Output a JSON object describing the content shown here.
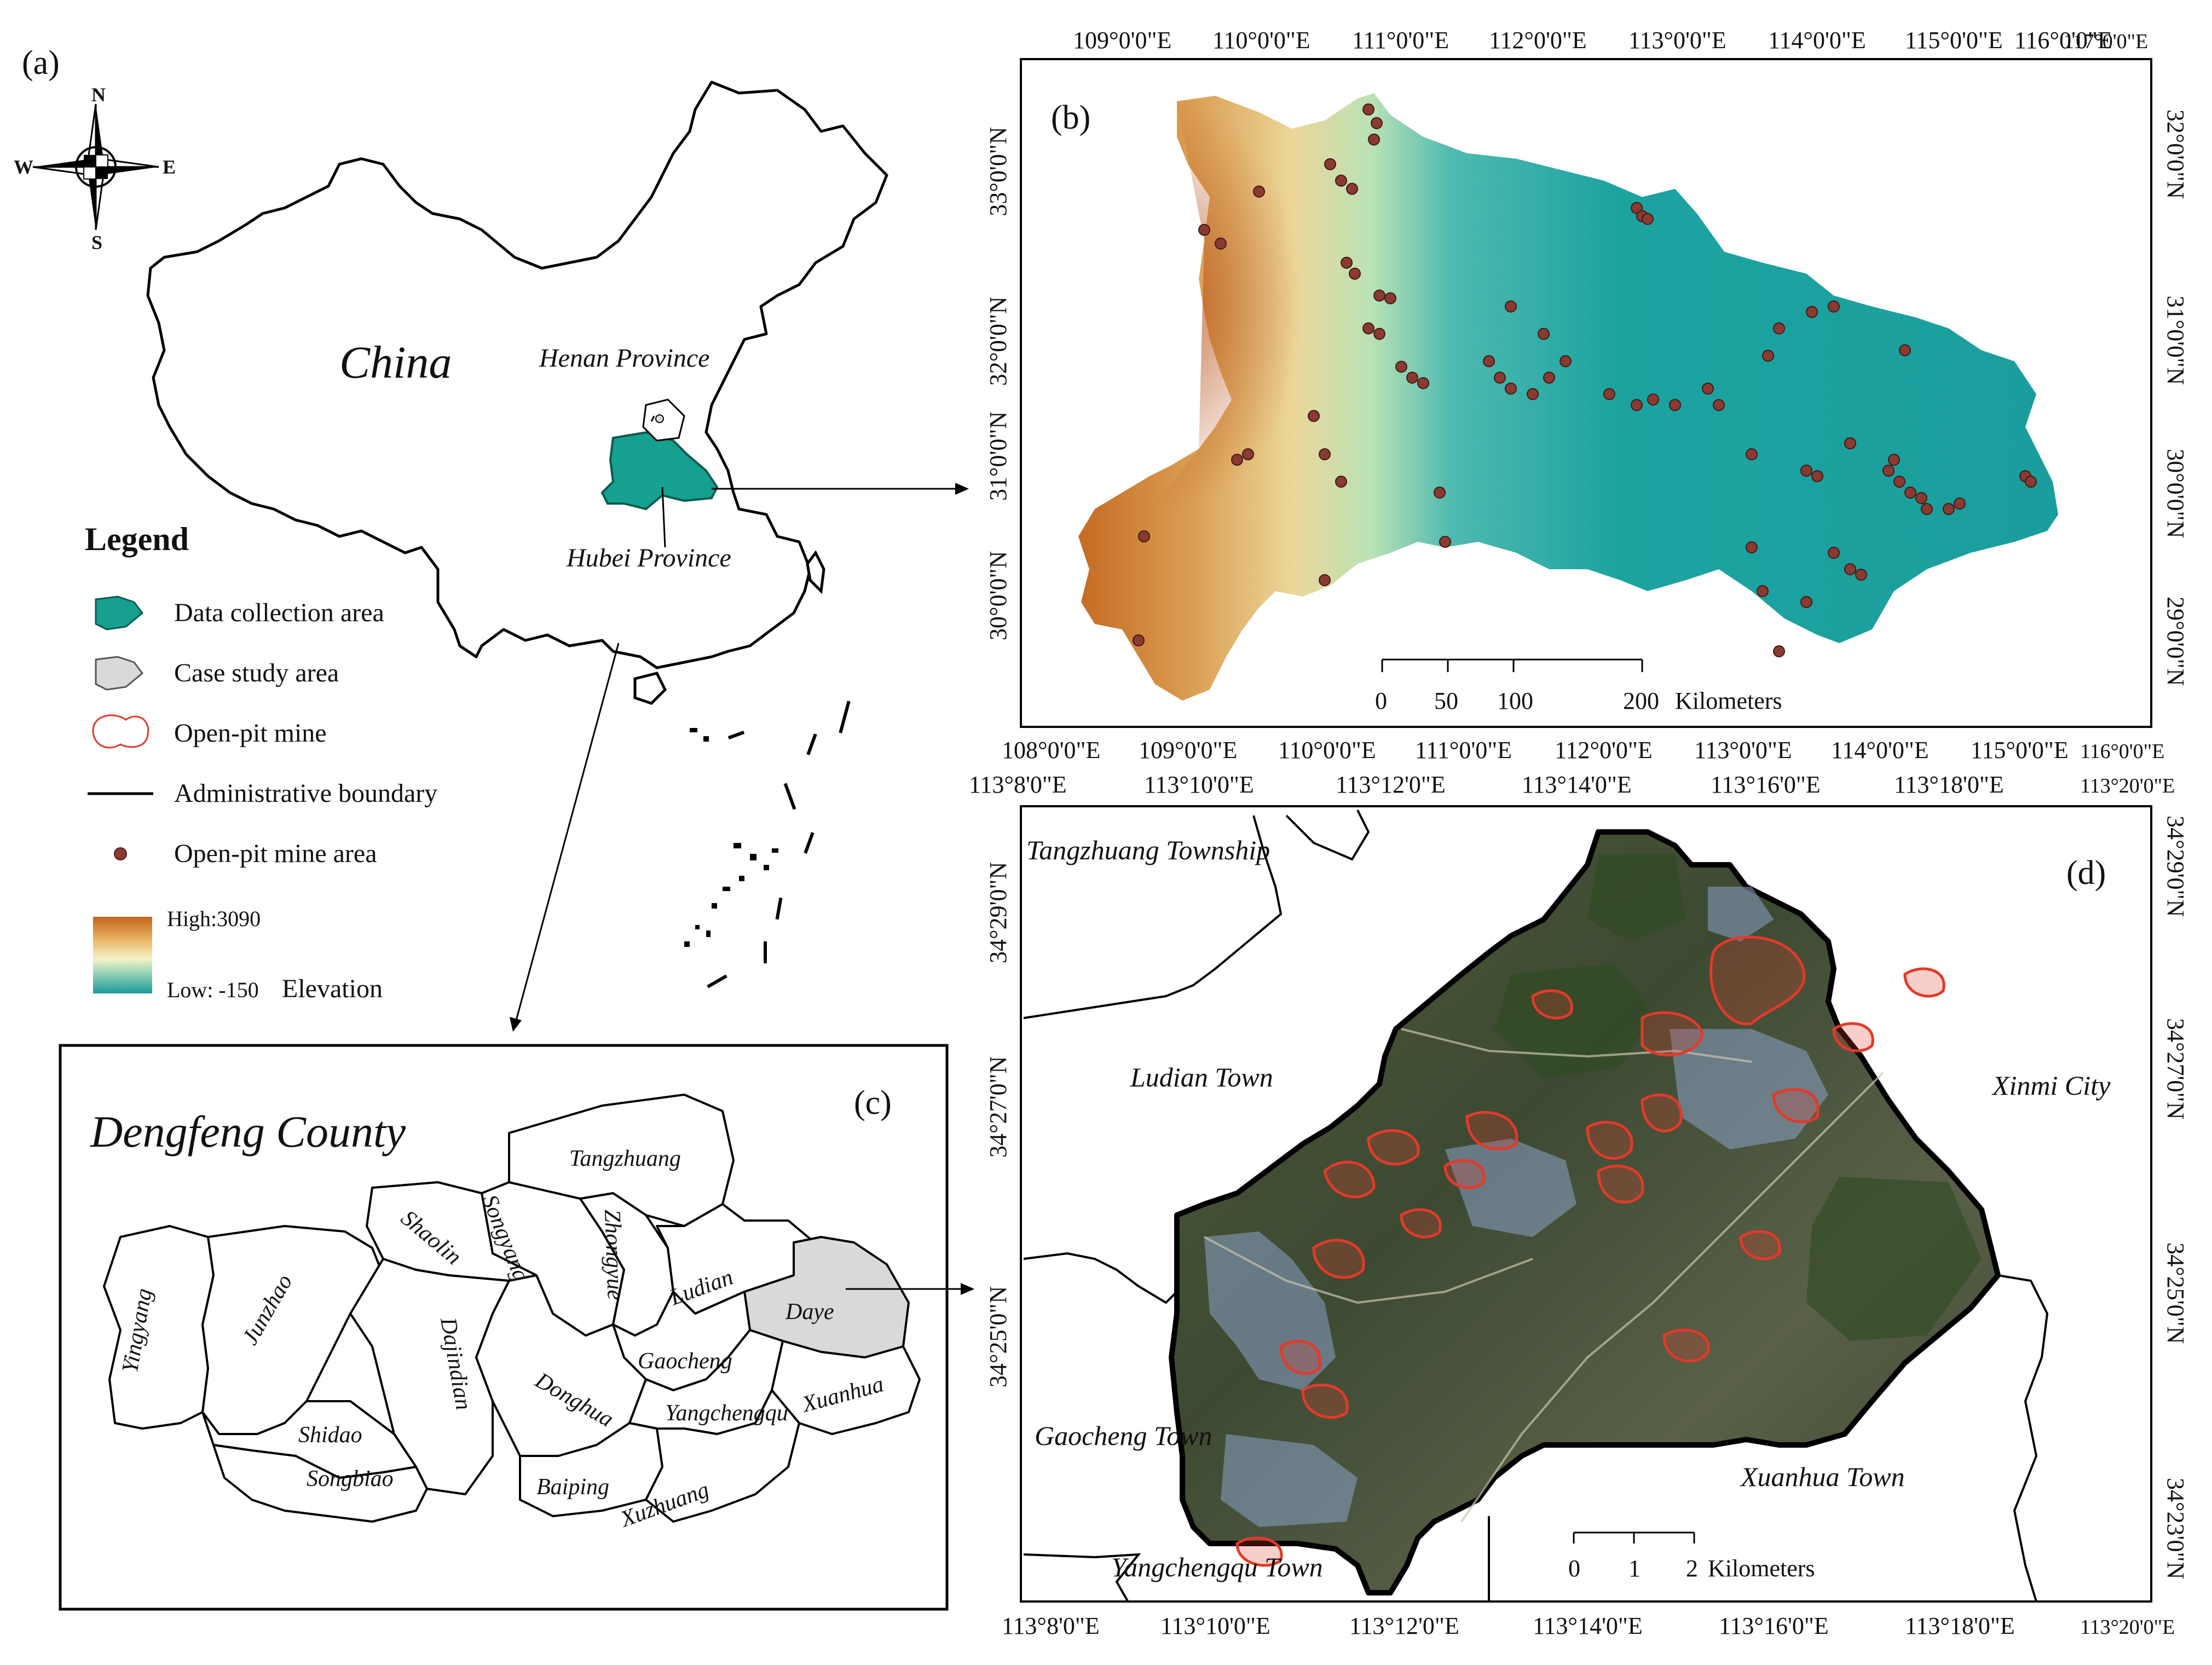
{
  "panels": {
    "a": "(a)",
    "b": "(b)",
    "c": "(c)",
    "d": "(d)"
  },
  "colors": {
    "data_area": "#15a08f",
    "case_area": "#d9d9d9",
    "mine_outline": "#e23a2a",
    "mine_point": "#8b3a32",
    "elev_high": "#c2641a",
    "elev_low": "#1a9a9a"
  },
  "panel_a": {
    "country_label": "China",
    "henan_label": "Henan Province",
    "hubei_label": "Hubei Province",
    "compass": {
      "n": "N",
      "s": "S",
      "e": "E",
      "w": "W"
    },
    "legend": {
      "title": "Legend",
      "items": [
        {
          "icon": "data-area-swatch",
          "label": "Data collection area"
        },
        {
          "icon": "case-area-swatch",
          "label": "Case study area"
        },
        {
          "icon": "mine-outline-swatch",
          "label": "Open-pit mine"
        },
        {
          "icon": "boundary-line",
          "label": "Administrative boundary"
        },
        {
          "icon": "mine-point",
          "label": "Open-pit mine area"
        }
      ],
      "elevation_high": "High:3090",
      "elevation_low": "Low: -150",
      "elevation_title": "Elevation"
    }
  },
  "panel_b": {
    "top_ticks": [
      "109°0'0\"E",
      "110°0'0\"E",
      "111°0'0\"E",
      "112°0'0\"E",
      "113°0'0\"E",
      "114°0'0\"E",
      "115°0'0\"E",
      "116°0'0\"E",
      "117°0'0\"E"
    ],
    "bottom_ticks": [
      "108°0'0\"E",
      "109°0'0\"E",
      "110°0'0\"E",
      "111°0'0\"E",
      "112°0'0\"E",
      "113°0'0\"E",
      "114°0'0\"E",
      "115°0'0\"E",
      "116°0'0\"E"
    ],
    "left_ticks": [
      "33°0'0\"N",
      "32°0'0\"N",
      "31°0'0\"N",
      "30°0'0\"N"
    ],
    "right_ticks": [
      "32°0'0\"N",
      "31°0'0\"N",
      "30°0'0\"N",
      "29°0'0\"N"
    ],
    "scale": {
      "labels": [
        "0",
        "50",
        "100",
        "200"
      ],
      "unit": "Kilometers"
    }
  },
  "panel_c": {
    "title": "Dengfeng County",
    "towns": [
      "Tangzhuang",
      "Songyang",
      "Zhongyue",
      "Shaolin",
      "Ludian",
      "Yingyang",
      "Junzhao",
      "Dajindian",
      "Daye",
      "Gaocheng",
      "Donghua",
      "Yangchengqu",
      "Xuanhua",
      "Shidao",
      "Songbiao",
      "Baiping",
      "Xuzhuang"
    ]
  },
  "panel_d": {
    "top_ticks": [
      "113°8'0\"E",
      "113°10'0\"E",
      "113°12'0\"E",
      "113°14'0\"E",
      "113°16'0\"E",
      "113°18'0\"E",
      "113°20'0\"E"
    ],
    "bottom_ticks": [
      "113°8'0\"E",
      "113°10'0\"E",
      "113°12'0\"E",
      "113°14'0\"E",
      "113°16'0\"E",
      "113°18'0\"E",
      "113°20'0\"E"
    ],
    "left_ticks": [
      "34°29'0\"N",
      "34°27'0\"N",
      "34°25'0\"N"
    ],
    "right_ticks": [
      "34°29'0\"N",
      "34°27'0\"N",
      "34°25'0\"N",
      "34°23'0\"N"
    ],
    "places": {
      "tangzhuang": "Tangzhuang Township",
      "ludian": "Ludian Town",
      "xinmi": "Xinmi City",
      "gaocheng": "Gaocheng Town",
      "xuanhua": "Xuanhua Town",
      "yangchengqu": "Yangchengqu Town"
    },
    "scale": {
      "labels": [
        "0",
        "1",
        "2"
      ],
      "unit": "Kilometers"
    }
  }
}
